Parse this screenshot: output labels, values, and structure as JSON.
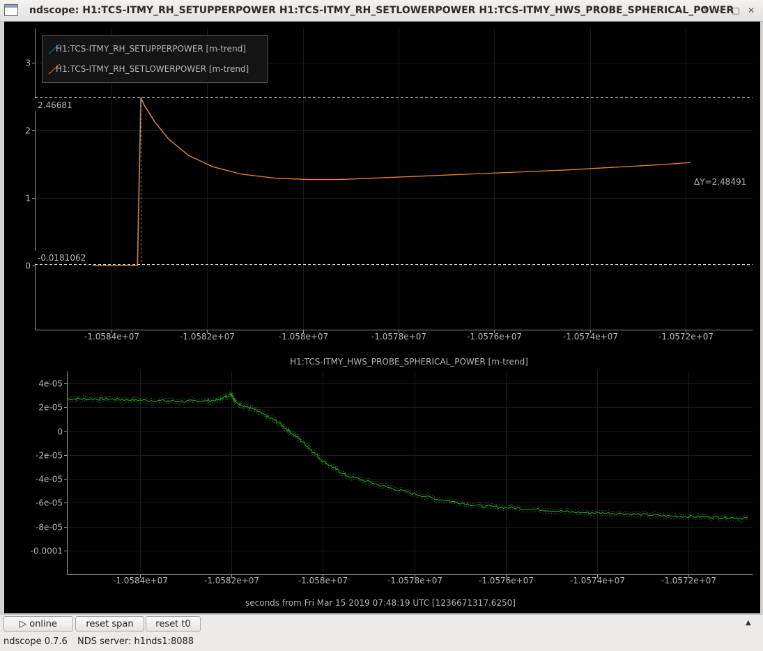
{
  "window": {
    "title": "ndscope: H1:TCS-ITMY_RH_SETUPPERPOWER H1:TCS-ITMY_RH_SETLOWERPOWER H1:TCS-ITMY_HWS_PROBE_SPHERICAL_POWER",
    "controls": [
      "up-arrow-icon",
      "minimize-icon",
      "maximize-icon",
      "close-icon"
    ]
  },
  "top_plot": {
    "legend": [
      {
        "label": "H1:TCS-ITMY_RH_SETUPPERPOWER [m-trend]",
        "color": "#1f77b4"
      },
      {
        "label": "H1:TCS-ITMY_RH_SETLOWERPOWER [m-trend]",
        "color": "#ff7f0e"
      }
    ],
    "cursor_upper_label": "2.46681",
    "cursor_lower_label": "-0.0181062",
    "delta_label": "ΔY=2.48491",
    "y_ticks": [
      "3",
      "2",
      "1",
      "0"
    ]
  },
  "bottom_plot": {
    "title": "H1:TCS-ITMY_HWS_PROBE_SPHERICAL_POWER [m-trend]",
    "y_ticks": [
      "4e-05",
      "2e-05",
      "0",
      "-2e-05",
      "-4e-05",
      "-6e-05",
      "-8e-05",
      "-0.0001"
    ]
  },
  "x_ticks": [
    "-1.0584e+07",
    "-1.0582e+07",
    "-1.058e+07",
    "-1.0578e+07",
    "-1.0576e+07",
    "-1.0574e+07",
    "-1.0572e+07"
  ],
  "x_axis_label": "seconds from Fri Mar 15 2019 07:48:19 UTC [1236671317.6250]",
  "chart_data": [
    {
      "type": "line",
      "title": "",
      "xlabel": "seconds from Fri Mar 15 2019 07:48:19 UTC [1236671317.6250]",
      "ylabel": "",
      "xlim": [
        -10585600,
        -10570600
      ],
      "ylim": [
        -0.95,
        3.5
      ],
      "grid": true,
      "legend": "top-left",
      "cursors": {
        "y_upper": 2.46681,
        "y_lower": -0.0181062,
        "delta_y": 2.48491
      },
      "series": [
        {
          "name": "H1:TCS-ITMY_RH_SETUPPERPOWER [m-trend]",
          "color": "#1f77b4",
          "x": [
            -10584400,
            -10583460,
            -10583390,
            -10583330,
            -10583100,
            -10582800,
            -10582400,
            -10581900,
            -10581300,
            -10580600,
            -10579900,
            -10579200,
            -10578500,
            -10577500,
            -10576500,
            -10575500,
            -10574500,
            -10573500,
            -10572500,
            -10571900
          ],
          "y": [
            0,
            0,
            2.48,
            2.38,
            2.12,
            1.86,
            1.63,
            1.46,
            1.35,
            1.29,
            1.27,
            1.27,
            1.29,
            1.32,
            1.35,
            1.38,
            1.41,
            1.45,
            1.49,
            1.52
          ]
        },
        {
          "name": "H1:TCS-ITMY_RH_SETLOWERPOWER [m-trend]",
          "color": "#ff7f0e",
          "x": [
            -10584400,
            -10583460,
            -10583390,
            -10583330,
            -10583100,
            -10582800,
            -10582400,
            -10581900,
            -10581300,
            -10580600,
            -10579900,
            -10579200,
            -10578500,
            -10577500,
            -10576500,
            -10575500,
            -10574500,
            -10573500,
            -10572500,
            -10571900
          ],
          "y": [
            0,
            0,
            2.48,
            2.38,
            2.12,
            1.86,
            1.63,
            1.46,
            1.35,
            1.29,
            1.27,
            1.27,
            1.29,
            1.32,
            1.35,
            1.38,
            1.41,
            1.45,
            1.49,
            1.52
          ]
        }
      ]
    },
    {
      "type": "line",
      "title": "H1:TCS-ITMY_HWS_PROBE_SPHERICAL_POWER [m-trend]",
      "xlabel": "seconds from Fri Mar 15 2019 07:48:19 UTC [1236671317.6250]",
      "ylabel": "",
      "xlim": [
        -10585600,
        -10570600
      ],
      "ylim": [
        -0.00012,
        5e-05
      ],
      "grid": true,
      "series": [
        {
          "name": "H1:TCS-ITMY_HWS_PROBE_SPHERICAL_POWER [m-trend]",
          "color": "#2ca02c",
          "x": [
            -10585600,
            -10584800,
            -10584000,
            -10583000,
            -10582300,
            -10582000,
            -10581900,
            -10581500,
            -10581000,
            -10580500,
            -10580000,
            -10579500,
            -10578500,
            -10577500,
            -10576500,
            -10575500,
            -10574500,
            -10573500,
            -10572500,
            -10571500,
            -10570700
          ],
          "y": [
            2.7e-05,
            2.7e-05,
            2.6e-05,
            2.5e-05,
            2.6e-05,
            3.1e-05,
            2.4e-05,
            1.8e-05,
            8e-06,
            -7e-06,
            -2.5e-05,
            -3.7e-05,
            -4.8e-05,
            -5.7e-05,
            -6.3e-05,
            -6.5e-05,
            -6.8e-05,
            -6.9e-05,
            -7.1e-05,
            -7.2e-05,
            -7.3e-05
          ]
        }
      ]
    }
  ],
  "toolbar": {
    "online_label": "online",
    "reset_span_label": "reset span",
    "reset_t0_label": "reset t0"
  },
  "status": {
    "version": "ndscope 0.7.6",
    "server": "NDS server: h1nds1:8088"
  }
}
